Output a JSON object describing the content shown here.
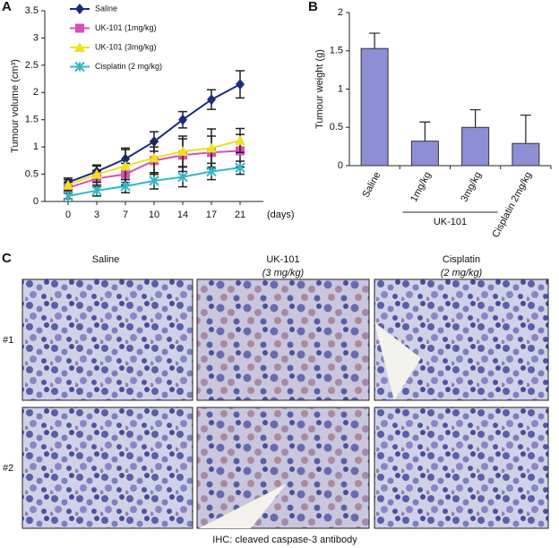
{
  "chart_data": [
    {
      "type": "line",
      "panel": "A",
      "y_label": "Tumour volume (cm³)",
      "x_label": "(days)",
      "categories": [
        "0",
        "3",
        "7",
        "10",
        "14",
        "17",
        "21"
      ],
      "ylim": [
        0,
        3.5
      ],
      "yticks": [
        0,
        0.5,
        1,
        1.5,
        2,
        2.5,
        3,
        3.5
      ],
      "series": [
        {
          "name": "Saline",
          "color": "#1c2a80",
          "marker": "diamond",
          "values": [
            0.35,
            0.55,
            0.78,
            1.1,
            1.5,
            1.87,
            2.15
          ],
          "errors": [
            0.08,
            0.12,
            0.2,
            0.18,
            0.15,
            0.18,
            0.25
          ]
        },
        {
          "name": "UK-101 (1mg/kg)",
          "color": "#d94fb5",
          "marker": "square",
          "values": [
            0.25,
            0.42,
            0.5,
            0.75,
            0.85,
            0.9,
            0.93
          ],
          "errors": [
            0.1,
            0.15,
            0.2,
            0.25,
            0.3,
            0.3,
            0.3
          ]
        },
        {
          "name": "UK-101 (3mg/kg)",
          "color": "#f0e020",
          "marker": "triangle",
          "values": [
            0.3,
            0.5,
            0.65,
            0.8,
            0.92,
            0.98,
            1.12
          ],
          "errors": [
            0.1,
            0.15,
            0.3,
            0.3,
            0.28,
            0.35,
            0.22
          ]
        },
        {
          "name": "Cisplatin (2 mg/kg)",
          "color": "#33b5c9",
          "marker": "star",
          "values": [
            0.1,
            0.2,
            0.28,
            0.38,
            0.45,
            0.55,
            0.62
          ],
          "errors": [
            0.05,
            0.1,
            0.12,
            0.15,
            0.18,
            0.15,
            0.12
          ]
        }
      ]
    },
    {
      "type": "bar",
      "panel": "B",
      "y_label": "Tumour weight (g)",
      "group_label": "UK-101",
      "categories": [
        "Saline",
        "1mg/kg",
        "3mg/kg",
        "Cisplatin 2mg/kg"
      ],
      "values": [
        1.53,
        0.32,
        0.5,
        0.29
      ],
      "errors": [
        0.2,
        0.25,
        0.23,
        0.37
      ],
      "color": "#8c8fd4",
      "ylim": [
        0,
        2
      ],
      "yticks": [
        0,
        0.5,
        1,
        1.5,
        2
      ]
    }
  ],
  "panel_c": {
    "panel": "C",
    "columns": [
      {
        "title": "Saline"
      },
      {
        "title": "UK-101",
        "subtitle": "(3 mg/kg)"
      },
      {
        "title": "Cisplatin",
        "subtitle": "(2 mg/kg)"
      }
    ],
    "rows": [
      "#1",
      "#2"
    ],
    "caption": "IHC: cleaved caspase-3 antibody"
  }
}
